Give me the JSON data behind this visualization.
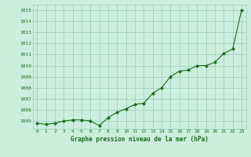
{
  "title": "Graphe pression niveau de la mer (hPa)",
  "x_values": [
    0,
    1,
    2,
    3,
    4,
    5,
    6,
    7,
    8,
    9,
    10,
    11,
    12,
    13,
    14,
    15,
    16,
    17,
    18,
    19,
    20,
    21,
    22,
    23
  ],
  "y_values": [
    1004.8,
    1004.7,
    1004.8,
    1005.0,
    1005.1,
    1005.1,
    1005.0,
    1004.6,
    1005.3,
    1005.8,
    1006.1,
    1006.5,
    1006.6,
    1007.5,
    1008.0,
    1009.0,
    1009.5,
    1009.6,
    1010.0,
    1010.0,
    1010.3,
    1011.1,
    1011.5,
    1015.0
  ],
  "ylim_min": 1004.3,
  "ylim_max": 1015.5,
  "xlim_min": -0.5,
  "xlim_max": 23.5,
  "yticks": [
    1005,
    1006,
    1007,
    1008,
    1009,
    1010,
    1011,
    1012,
    1013,
    1014,
    1015
  ],
  "xticks": [
    0,
    1,
    2,
    3,
    4,
    5,
    6,
    7,
    8,
    9,
    10,
    11,
    12,
    13,
    14,
    15,
    16,
    17,
    18,
    19,
    20,
    21,
    22,
    23
  ],
  "line_color": "#1a6b1a",
  "marker_color": "#1a6b1a",
  "bg_color": "#cceedd",
  "grid_color": "#99ccbb",
  "title_color": "#1a6b1a",
  "tick_label_color": "#1a6b1a",
  "tick_fontsize": 4.5,
  "title_fontsize": 5.5,
  "linewidth": 0.8,
  "markersize": 2.2
}
